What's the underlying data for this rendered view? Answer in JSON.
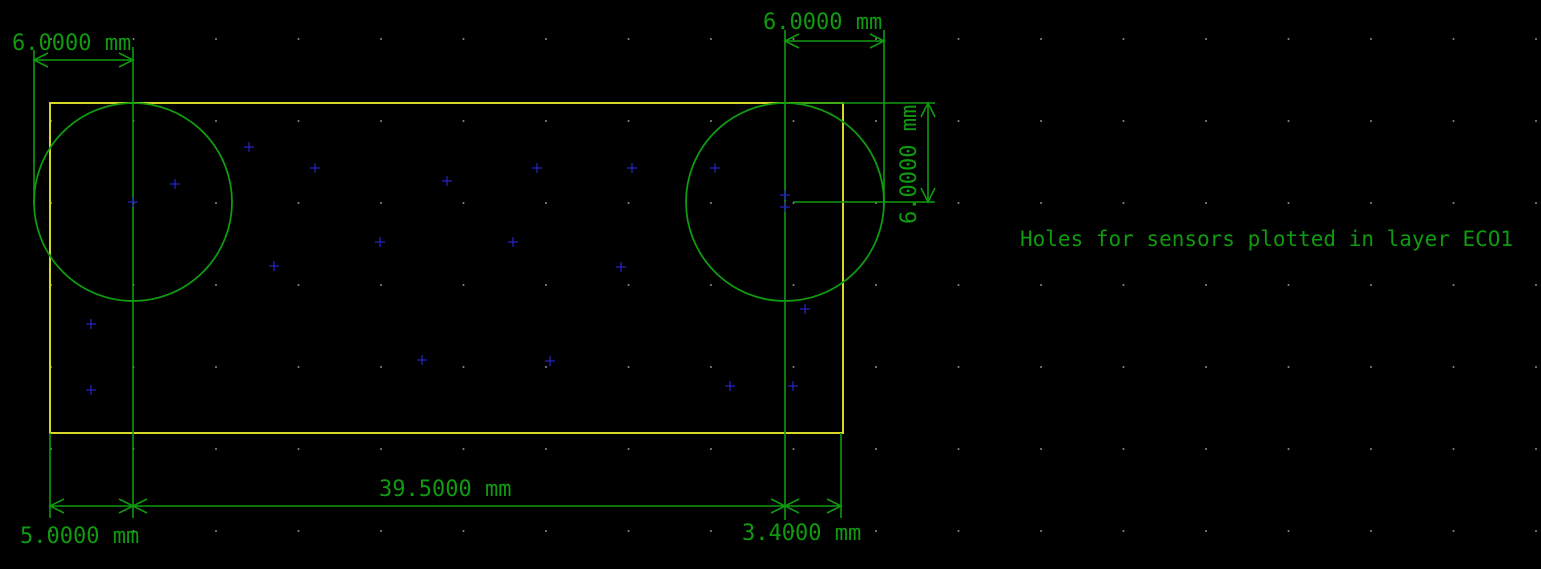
{
  "canvas": {
    "background_color": "#000000",
    "grid_color": "#8a8a8a",
    "board_edge_color": "#d7d72a",
    "dimension_color": "#109a10",
    "marker_color": "#2424c8"
  },
  "dimensions": {
    "top_left_width": "6.0000 mm",
    "top_right_width": "6.0000 mm",
    "right_vertical": "6.0000 mm",
    "bottom_middle": "39.5000 mm",
    "bottom_left": "5.0000 mm",
    "bottom_right": "3.4000 mm"
  },
  "note": "Holes for sensors plotted in layer ECO1",
  "markers_count": 21
}
